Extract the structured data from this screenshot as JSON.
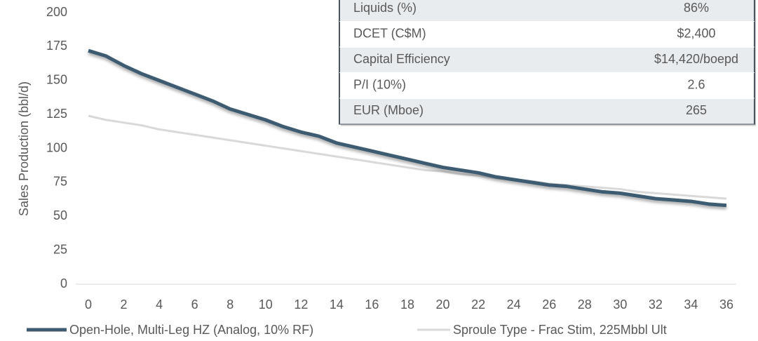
{
  "chart_data": {
    "type": "line",
    "y_label": "Sales Production (bbl/d)",
    "x": [
      0,
      1,
      2,
      3,
      4,
      5,
      6,
      7,
      8,
      9,
      10,
      11,
      12,
      13,
      14,
      15,
      16,
      17,
      18,
      19,
      20,
      21,
      22,
      23,
      24,
      25,
      26,
      27,
      28,
      29,
      30,
      31,
      32,
      33,
      34,
      35,
      36
    ],
    "series": [
      {
        "name": "Open-Hole, Multi-Leg HZ (Analog, 10% RF)",
        "color": "#3e5b72",
        "values": [
          172,
          168,
          161,
          155,
          150,
          145,
          140,
          135,
          129,
          125,
          121,
          116,
          112,
          109,
          104,
          101,
          98,
          95,
          92,
          89,
          86,
          84,
          82,
          79,
          77,
          75,
          73,
          72,
          70,
          68,
          67,
          65,
          63,
          62,
          61,
          59,
          58
        ]
      },
      {
        "name": "Sproule Type - Frac Stim, 225Mbbl Ult",
        "color": "#d9d9d9",
        "values": [
          124,
          121,
          119,
          117,
          114,
          112,
          110,
          108,
          106,
          104,
          102,
          100,
          98,
          96,
          94,
          92,
          90,
          88,
          86,
          84,
          83,
          81,
          80,
          78,
          77,
          76,
          74,
          73,
          72,
          71,
          70,
          68,
          67,
          66,
          65,
          64,
          63
        ]
      }
    ],
    "xlim": [
      0,
      36
    ],
    "xticks": [
      0,
      2,
      4,
      6,
      8,
      10,
      12,
      14,
      16,
      18,
      20,
      22,
      24,
      26,
      28,
      30,
      32,
      34,
      36
    ],
    "ylim": [
      0,
      200
    ],
    "yticks": [
      0,
      25,
      50,
      75,
      100,
      125,
      150,
      175,
      200
    ]
  },
  "table": {
    "rows": [
      [
        "Liquids (%)",
        "86%"
      ],
      [
        "DCET (C$M)",
        "$2,400"
      ],
      [
        "Capital Efficiency",
        "$14,420/boepd"
      ],
      [
        "P/I (10%)",
        "2.6"
      ],
      [
        "EUR (Mboe)",
        "265"
      ]
    ]
  }
}
